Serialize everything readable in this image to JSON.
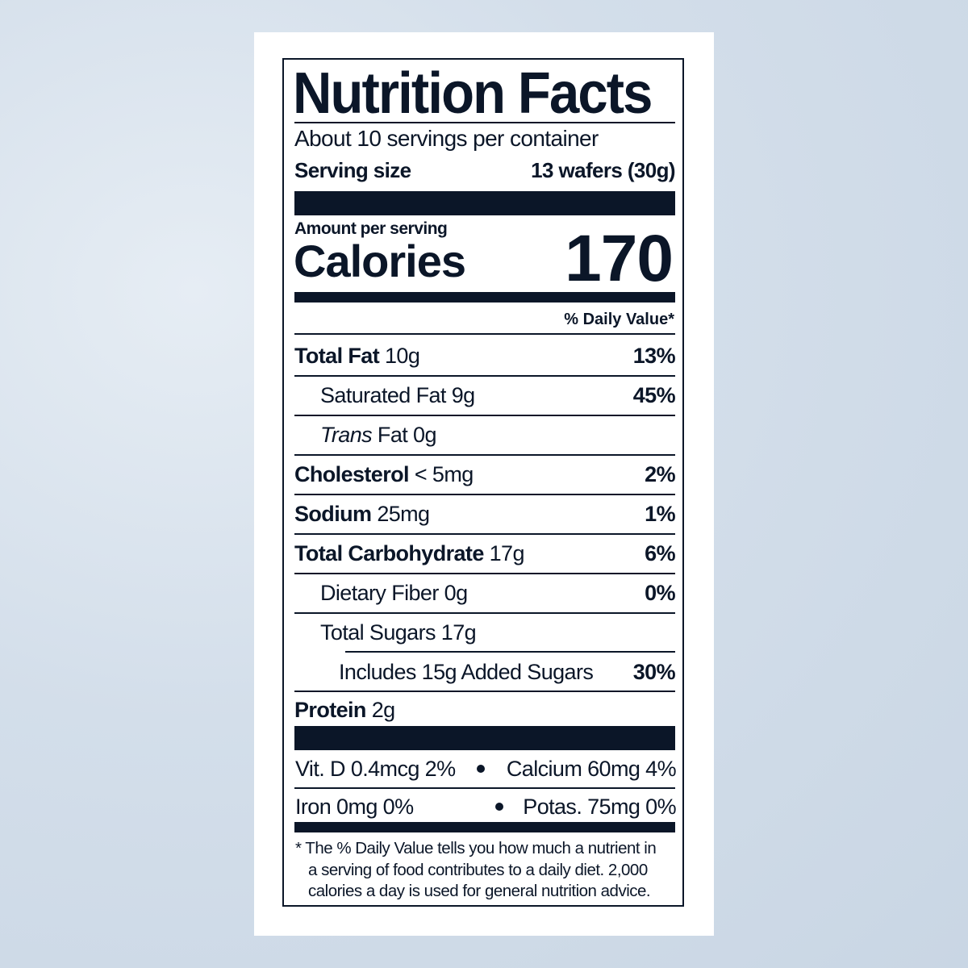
{
  "title": "Nutrition Facts",
  "servings": "About 10 servings per container",
  "serving_size": {
    "label": "Serving size",
    "value": "13 wafers (30g)"
  },
  "amount_per_serving": "Amount per serving",
  "calories": {
    "label": "Calories",
    "value": "170"
  },
  "daily_value_header": "% Daily Value*",
  "nutrients": [
    {
      "name": "Total Fat",
      "amount": "10g",
      "dv": "13%"
    },
    {
      "name": "Saturated Fat",
      "amount": "9g",
      "dv": "45%"
    },
    {
      "name_italic": "Trans",
      "name": "Fat",
      "amount": "0g"
    },
    {
      "name": "Cholesterol",
      "amount": "< 5mg",
      "dv": "2%"
    },
    {
      "name": "Sodium",
      "amount": "25mg",
      "dv": "1%"
    },
    {
      "name": "Total Carbohydrate",
      "amount": "17g",
      "dv": "6%"
    },
    {
      "name": "Dietary Fiber",
      "amount": "0g",
      "dv": "0%"
    },
    {
      "name": "Total Sugars",
      "amount": "17g"
    },
    {
      "name": "Includes 15g Added Sugars",
      "dv": "30%"
    },
    {
      "name": "Protein",
      "amount": "2g"
    }
  ],
  "vitamins": [
    [
      "Vit. D 0.4mcg 2%",
      "Calcium 60mg 4%"
    ],
    [
      "Iron 0mg 0%",
      "Potas. 75mg 0%"
    ]
  ],
  "footnote": [
    "* The % Daily Value tells you how much a nutrient in",
    "a serving of food contributes to a daily diet. 2,000",
    "calories a day is used for general nutrition advice."
  ]
}
